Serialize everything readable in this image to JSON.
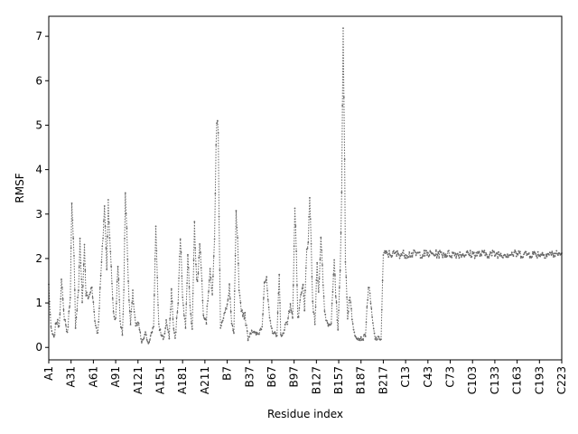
{
  "chart_data": {
    "type": "line",
    "title": "",
    "xlabel": "Residue index",
    "ylabel": "RMSF",
    "ylim": [
      -0.28,
      7.45
    ],
    "yticks": [
      0,
      1,
      2,
      3,
      4,
      5,
      6,
      7
    ],
    "n_points": 690,
    "xticks": [
      "A1",
      "A31",
      "A61",
      "A91",
      "A121",
      "A151",
      "A181",
      "A211",
      "B7",
      "B37",
      "B67",
      "B97",
      "B127",
      "B157",
      "B187",
      "B217",
      "C13",
      "C43",
      "C73",
      "C103",
      "C133",
      "C163",
      "C193",
      "C223"
    ],
    "xtick_indices": [
      0,
      30,
      60,
      90,
      120,
      150,
      180,
      210,
      240,
      270,
      300,
      330,
      360,
      390,
      420,
      450,
      480,
      510,
      540,
      570,
      600,
      630,
      660,
      690
    ],
    "line_style": "dotted",
    "marker": "point",
    "color": "#666666",
    "grid": false,
    "legend": "none",
    "series": [
      {
        "peaks": [
          [
            0,
            1.4
          ],
          [
            3,
            0.4
          ],
          [
            7,
            0.2
          ],
          [
            10,
            0.6
          ],
          [
            14,
            0.5
          ],
          [
            17,
            1.5
          ],
          [
            20,
            0.8
          ],
          [
            25,
            0.3
          ],
          [
            29,
            1.2
          ],
          [
            31,
            3.2
          ],
          [
            34,
            2.0
          ],
          [
            36,
            0.5
          ],
          [
            40,
            1.3
          ],
          [
            42,
            2.4
          ],
          [
            45,
            1.0
          ],
          [
            48,
            2.3
          ],
          [
            50,
            1.2
          ],
          [
            54,
            1.1
          ],
          [
            58,
            1.4
          ],
          [
            62,
            0.6
          ],
          [
            66,
            0.3
          ],
          [
            70,
            1.6
          ],
          [
            73,
            2.5
          ],
          [
            75,
            3.2
          ],
          [
            77,
            2.2
          ],
          [
            78,
            1.8
          ],
          [
            80,
            3.3
          ],
          [
            83,
            2.1
          ],
          [
            87,
            0.8
          ],
          [
            90,
            0.6
          ],
          [
            93,
            1.9
          ],
          [
            96,
            0.6
          ],
          [
            99,
            0.3
          ],
          [
            101,
            1.3
          ],
          [
            103,
            3.5
          ],
          [
            105,
            2.7
          ],
          [
            107,
            1.4
          ],
          [
            110,
            0.5
          ],
          [
            113,
            1.2
          ],
          [
            117,
            0.5
          ],
          [
            121,
            0.5
          ],
          [
            125,
            0.1
          ],
          [
            130,
            0.3
          ],
          [
            134,
            0.1
          ],
          [
            138,
            0.3
          ],
          [
            141,
            0.5
          ],
          [
            144,
            2.7
          ],
          [
            146,
            1.5
          ],
          [
            148,
            0.5
          ],
          [
            151,
            0.3
          ],
          [
            155,
            0.2
          ],
          [
            158,
            0.6
          ],
          [
            162,
            0.2
          ],
          [
            165,
            1.3
          ],
          [
            168,
            0.4
          ],
          [
            170,
            0.2
          ],
          [
            174,
            1.0
          ],
          [
            177,
            2.5
          ],
          [
            180,
            1.2
          ],
          [
            184,
            0.4
          ],
          [
            187,
            2.1
          ],
          [
            190,
            1.0
          ],
          [
            193,
            0.4
          ],
          [
            196,
            2.8
          ],
          [
            198,
            1.8
          ],
          [
            200,
            1.4
          ],
          [
            203,
            2.4
          ],
          [
            205,
            1.8
          ],
          [
            208,
            0.8
          ],
          [
            212,
            0.6
          ],
          [
            217,
            1.8
          ],
          [
            220,
            1.1
          ],
          [
            223,
            2.5
          ],
          [
            225,
            4.5
          ],
          [
            226,
            5.0
          ],
          [
            227,
            5.1
          ],
          [
            228,
            4.9
          ],
          [
            229,
            2.9
          ],
          [
            231,
            0.5
          ],
          [
            235,
            0.7
          ],
          [
            240,
            0.9
          ],
          [
            243,
            1.4
          ],
          [
            246,
            0.5
          ],
          [
            249,
            0.3
          ],
          [
            252,
            3.0
          ],
          [
            254,
            2.4
          ],
          [
            256,
            1.2
          ],
          [
            260,
            0.8
          ],
          [
            264,
            0.7
          ],
          [
            268,
            0.2
          ],
          [
            273,
            0.4
          ],
          [
            277,
            0.3
          ],
          [
            282,
            0.3
          ],
          [
            287,
            0.5
          ],
          [
            290,
            1.5
          ],
          [
            293,
            1.5
          ],
          [
            297,
            0.6
          ],
          [
            300,
            0.4
          ],
          [
            304,
            0.3
          ],
          [
            307,
            0.3
          ],
          [
            310,
            1.6
          ],
          [
            312,
            0.3
          ],
          [
            316,
            0.3
          ],
          [
            319,
            0.6
          ],
          [
            322,
            0.6
          ],
          [
            325,
            1.0
          ],
          [
            328,
            0.6
          ],
          [
            331,
            3.2
          ],
          [
            333,
            2.2
          ],
          [
            335,
            0.6
          ],
          [
            339,
            1.1
          ],
          [
            342,
            1.4
          ],
          [
            344,
            0.8
          ],
          [
            347,
            2.2
          ],
          [
            349,
            2.4
          ],
          [
            351,
            3.3
          ],
          [
            353,
            2.3
          ],
          [
            355,
            1.0
          ],
          [
            358,
            0.5
          ],
          [
            361,
            1.9
          ],
          [
            363,
            1.2
          ],
          [
            366,
            2.5
          ],
          [
            368,
            1.8
          ],
          [
            371,
            0.8
          ],
          [
            374,
            0.6
          ],
          [
            377,
            0.5
          ],
          [
            380,
            0.6
          ],
          [
            384,
            1.9
          ],
          [
            386,
            1.2
          ],
          [
            389,
            0.4
          ],
          [
            392,
            1.8
          ],
          [
            394,
            3.5
          ],
          [
            395,
            5.5
          ],
          [
            396,
            7.1
          ],
          [
            397,
            5.6
          ],
          [
            398,
            4.2
          ],
          [
            399,
            2.0
          ],
          [
            402,
            0.7
          ],
          [
            405,
            1.2
          ],
          [
            408,
            0.6
          ],
          [
            412,
            0.3
          ],
          [
            416,
            0.2
          ],
          [
            419,
            0.2
          ],
          [
            423,
            0.2
          ],
          [
            426,
            0.3
          ],
          [
            430,
            1.4
          ],
          [
            433,
            1.0
          ],
          [
            436,
            0.5
          ],
          [
            439,
            0.2
          ],
          [
            443,
            0.2
          ],
          [
            447,
            0.2
          ],
          [
            450,
            2.1
          ]
        ]
      }
    ]
  }
}
